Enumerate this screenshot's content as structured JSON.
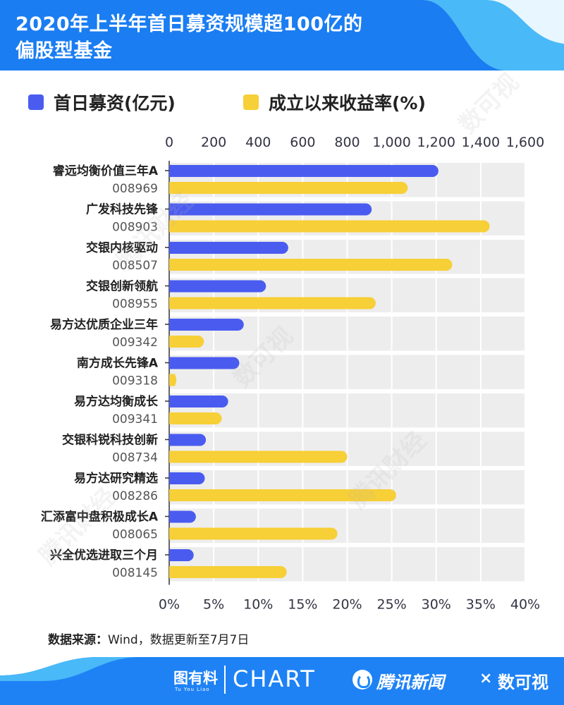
{
  "header": {
    "title_line1": "2020年上半年首日募资规模超100亿的",
    "title_line2": "偏股型基金"
  },
  "legend": [
    {
      "label": "首日募资(亿元)",
      "color": "#4a5cf0"
    },
    {
      "label": "成立以来收益率(%)",
      "color": "#f7cf37"
    }
  ],
  "chart_data": {
    "type": "bar",
    "orientation": "horizontal",
    "categories": [
      {
        "name": "睿远均衡价值三年A",
        "code": "008969"
      },
      {
        "name": "广发科技先锋",
        "code": "008903"
      },
      {
        "name": "交银内核驱动",
        "code": "008507"
      },
      {
        "name": "交银创新领航",
        "code": "008955"
      },
      {
        "name": "易方达优质企业三年",
        "code": "009342"
      },
      {
        "name": "南方成长先锋A",
        "code": "009318"
      },
      {
        "name": "易方达均衡成长",
        "code": "009341"
      },
      {
        "name": "交银科锐科技创新",
        "code": "008734"
      },
      {
        "name": "易方达研究精选",
        "code": "008286"
      },
      {
        "name": "汇添富中盘积极成长A",
        "code": "008065"
      },
      {
        "name": "兴全优选进取三个月",
        "code": "008145"
      }
    ],
    "series": [
      {
        "name": "首日募资(亿元)",
        "axis": "top",
        "color": "#4a5cf0",
        "values": [
          1210,
          910,
          535,
          435,
          335,
          315,
          265,
          165,
          160,
          120,
          110
        ]
      },
      {
        "name": "成立以来收益率(%)",
        "axis": "bottom",
        "color": "#f7cf37",
        "values": [
          26.8,
          36.0,
          31.8,
          23.2,
          3.9,
          0.8,
          5.9,
          20.0,
          25.5,
          18.9,
          13.2
        ]
      }
    ],
    "top_axis": {
      "range": [
        0,
        1600
      ],
      "ticks": [
        "0",
        "200",
        "400",
        "600",
        "800",
        "1,000",
        "1,200",
        "1,400",
        "1,600"
      ]
    },
    "bottom_axis": {
      "range": [
        0,
        40
      ],
      "ticks": [
        "0%",
        "5%",
        "10%",
        "15%",
        "20%",
        "25%",
        "30%",
        "35%",
        "40%"
      ]
    },
    "grid": true
  },
  "source": {
    "label": "数据来源：",
    "text": "Wind，数据更新至7月7日"
  },
  "footer": {
    "tuyouliao": "图有料",
    "tuyouliao_sub": "Tu You Liao",
    "chart": "CHART",
    "tencent": "腾讯新闻",
    "times": "×",
    "shuxi": "数可视"
  },
  "watermarks": [
    "腾讯财经",
    "数可视",
    "腾讯财经",
    "数可视",
    "腾讯财经"
  ]
}
